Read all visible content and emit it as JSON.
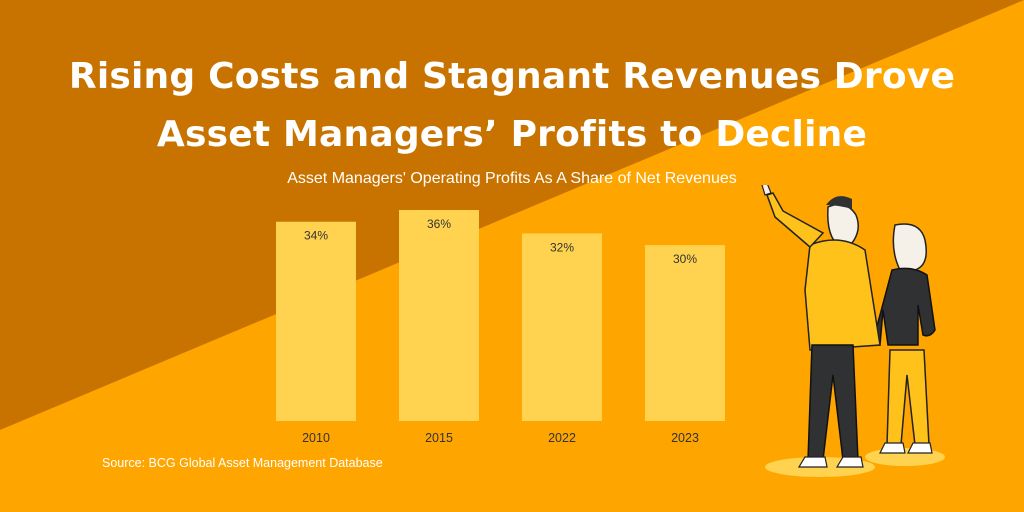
{
  "colors": {
    "dark_orange": "#c87300",
    "light_orange": "#ffa500",
    "bar": "#ffd34f",
    "text": "#ffffff",
    "label_dark": "#333333"
  },
  "header": {
    "title_line1": "Rising Costs and Stagnant Revenues Drove",
    "title_line2": "Asset Managers’ Profits to Decline",
    "subtitle": "Asset Managers' Operating Profits As A Share of Net Revenues"
  },
  "footer": {
    "source": "Source: BCG Global Asset Management Database"
  },
  "illustration": {
    "icon": "two-people-pointing-illustration"
  },
  "chart_data": {
    "type": "bar",
    "categories": [
      "2010",
      "2015",
      "2022",
      "2023"
    ],
    "values": [
      34,
      36,
      32,
      30
    ],
    "labels": [
      "34%",
      "36%",
      "32%",
      "30%"
    ],
    "title": "Asset Managers' Operating Profits As A Share of Net Revenues",
    "xlabel": "",
    "ylabel": "",
    "unit": "%",
    "grid": false,
    "legend": "none"
  }
}
